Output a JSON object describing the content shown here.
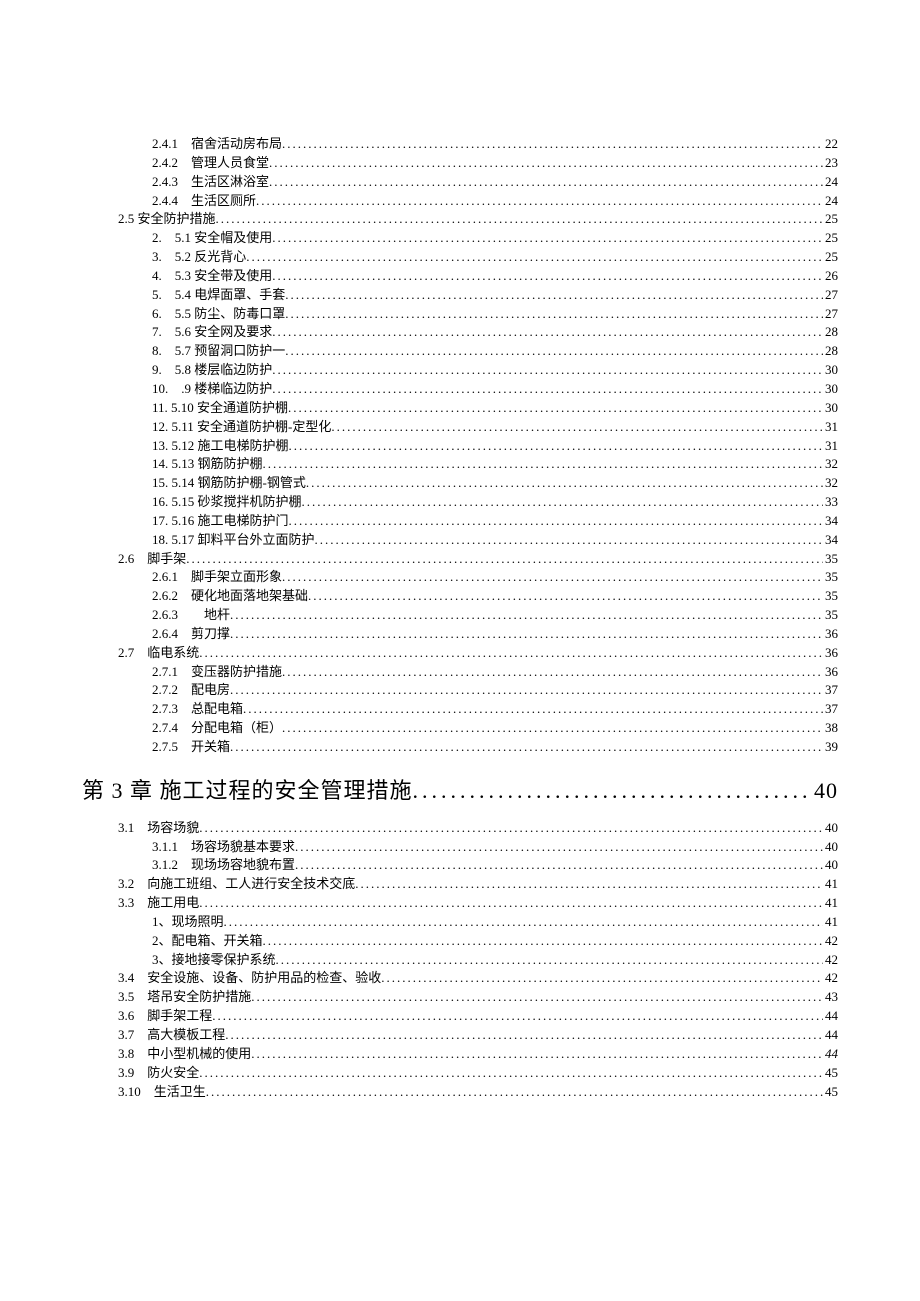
{
  "entries": [
    {
      "lvl": "lvl-3",
      "label": "2.4.1　宿舍活动房布局",
      "page": "22"
    },
    {
      "lvl": "lvl-3",
      "label": "2.4.2　管理人员食堂",
      "page": "23"
    },
    {
      "lvl": "lvl-3",
      "label": "2.4.3　生活区淋浴室",
      "page": "24"
    },
    {
      "lvl": "lvl-3",
      "label": "2.4.4　生活区厕所",
      "page": "24"
    },
    {
      "lvl": "lvl-sec",
      "label": "2.5 安全防护措施",
      "page": "25"
    },
    {
      "lvl": "lvl-2b",
      "label": "2.　5.1 安全帽及使用",
      "page": "25"
    },
    {
      "lvl": "lvl-2b",
      "label": "3.　5.2 反光背心",
      "page": "25"
    },
    {
      "lvl": "lvl-2b",
      "label": "4.　5.3 安全带及使用",
      "page": "26"
    },
    {
      "lvl": "lvl-2b",
      "label": "5.　5.4 电焊面罩、手套",
      "page": "27"
    },
    {
      "lvl": "lvl-2b",
      "label": "6.　5.5 防尘、防毒口罩",
      "page": "27"
    },
    {
      "lvl": "lvl-2b",
      "label": "7.　5.6 安全网及要求",
      "page": "28"
    },
    {
      "lvl": "lvl-2b",
      "label": "8.　5.7 预留洞口防护一",
      "page": "28"
    },
    {
      "lvl": "lvl-2b",
      "label": "9.　5.8 楼层临边防护",
      "page": "30"
    },
    {
      "lvl": "lvl-2b",
      "label": "10.　.9 楼梯临边防护",
      "page": "30"
    },
    {
      "lvl": "lvl-2b",
      "label": "11. 5.10 安全通道防护棚",
      "page": "30"
    },
    {
      "lvl": "lvl-2b",
      "label": "12. 5.11 安全通道防护棚-定型化",
      "page": "31"
    },
    {
      "lvl": "lvl-2b",
      "label": "13. 5.12 施工电梯防护棚",
      "page": "31"
    },
    {
      "lvl": "lvl-2b",
      "label": "14. 5.13 钢筋防护棚",
      "page": "32"
    },
    {
      "lvl": "lvl-2b",
      "label": "15. 5.14 钢筋防护棚-钢管式",
      "page": "32"
    },
    {
      "lvl": "lvl-2b",
      "label": "16. 5.15 砂浆搅拌机防护棚",
      "page": "33"
    },
    {
      "lvl": "lvl-2b",
      "label": "17. 5.16 施工电梯防护门",
      "page": "34"
    },
    {
      "lvl": "lvl-2b",
      "label": "18. 5.17 卸料平台外立面防护",
      "page": "34"
    },
    {
      "lvl": "lvl-sec",
      "label": "2.6　脚手架",
      "page": "35"
    },
    {
      "lvl": "lvl-3",
      "label": "2.6.1　脚手架立面形象",
      "page": "35"
    },
    {
      "lvl": "lvl-3",
      "label": "2.6.2　硬化地面落地架基础",
      "page": "35"
    },
    {
      "lvl": "lvl-3",
      "label": "2.6.3　　地杆",
      "page": "35"
    },
    {
      "lvl": "lvl-3",
      "label": "2.6.4　剪刀撑",
      "page": "36"
    },
    {
      "lvl": "lvl-sec",
      "label": "2.7　临电系统",
      "page": "36"
    },
    {
      "lvl": "lvl-3",
      "label": "2.7.1　变压器防护措施",
      "page": "36"
    },
    {
      "lvl": "lvl-3",
      "label": "2.7.2　配电房",
      "page": "37"
    },
    {
      "lvl": "lvl-3",
      "label": "2.7.3　总配电箱",
      "page": "37"
    },
    {
      "lvl": "lvl-3",
      "label": "2.7.4　分配电箱（柜）",
      "page": "38"
    },
    {
      "lvl": "lvl-3",
      "label": "2.7.5　开关箱",
      "page": "39"
    }
  ],
  "chapter": {
    "label": "第 3 章 施工过程的安全管理措施",
    "page": "40"
  },
  "entries2": [
    {
      "lvl": "lvl-sec",
      "label": "3.1　场容场貌",
      "page": "40"
    },
    {
      "lvl": "lvl-3",
      "label": "3.1.1　场容场貌基本要求",
      "page": "40"
    },
    {
      "lvl": "lvl-3",
      "label": "3.1.2　现场场容地貌布置",
      "page": "40"
    },
    {
      "lvl": "lvl-sec",
      "label": "3.2　向施工班组、工人进行安全技术交底",
      "page": "41"
    },
    {
      "lvl": "lvl-sec",
      "label": "3.3　施工用电",
      "page": "41"
    },
    {
      "lvl": "lvl-sub",
      "label": "1、现场照明",
      "page": "41"
    },
    {
      "lvl": "lvl-sub",
      "label": "2、配电箱、开关箱",
      "page": "42"
    },
    {
      "lvl": "lvl-sub",
      "label": "3、接地接零保护系统",
      "page": "42"
    },
    {
      "lvl": "lvl-sec",
      "label": "3.4　安全设施、设备、防护用品的检查、验收",
      "page": "42"
    },
    {
      "lvl": "lvl-sec",
      "label": "3.5　塔吊安全防护措施",
      "page": "43"
    },
    {
      "lvl": "lvl-sec",
      "label": "3.6　脚手架工程",
      "page": "44"
    },
    {
      "lvl": "lvl-sec",
      "label": "3.7　高大模板工程",
      "page": "44"
    },
    {
      "lvl": "lvl-sec",
      "label": "3.8　中小型机械的使用",
      "page": "44",
      "italic": true
    },
    {
      "lvl": "lvl-sec",
      "label": "3.9　防火安全",
      "page": "45"
    },
    {
      "lvl": "lvl-sec",
      "label": "3.10　生活卫生",
      "page": "45"
    }
  ]
}
